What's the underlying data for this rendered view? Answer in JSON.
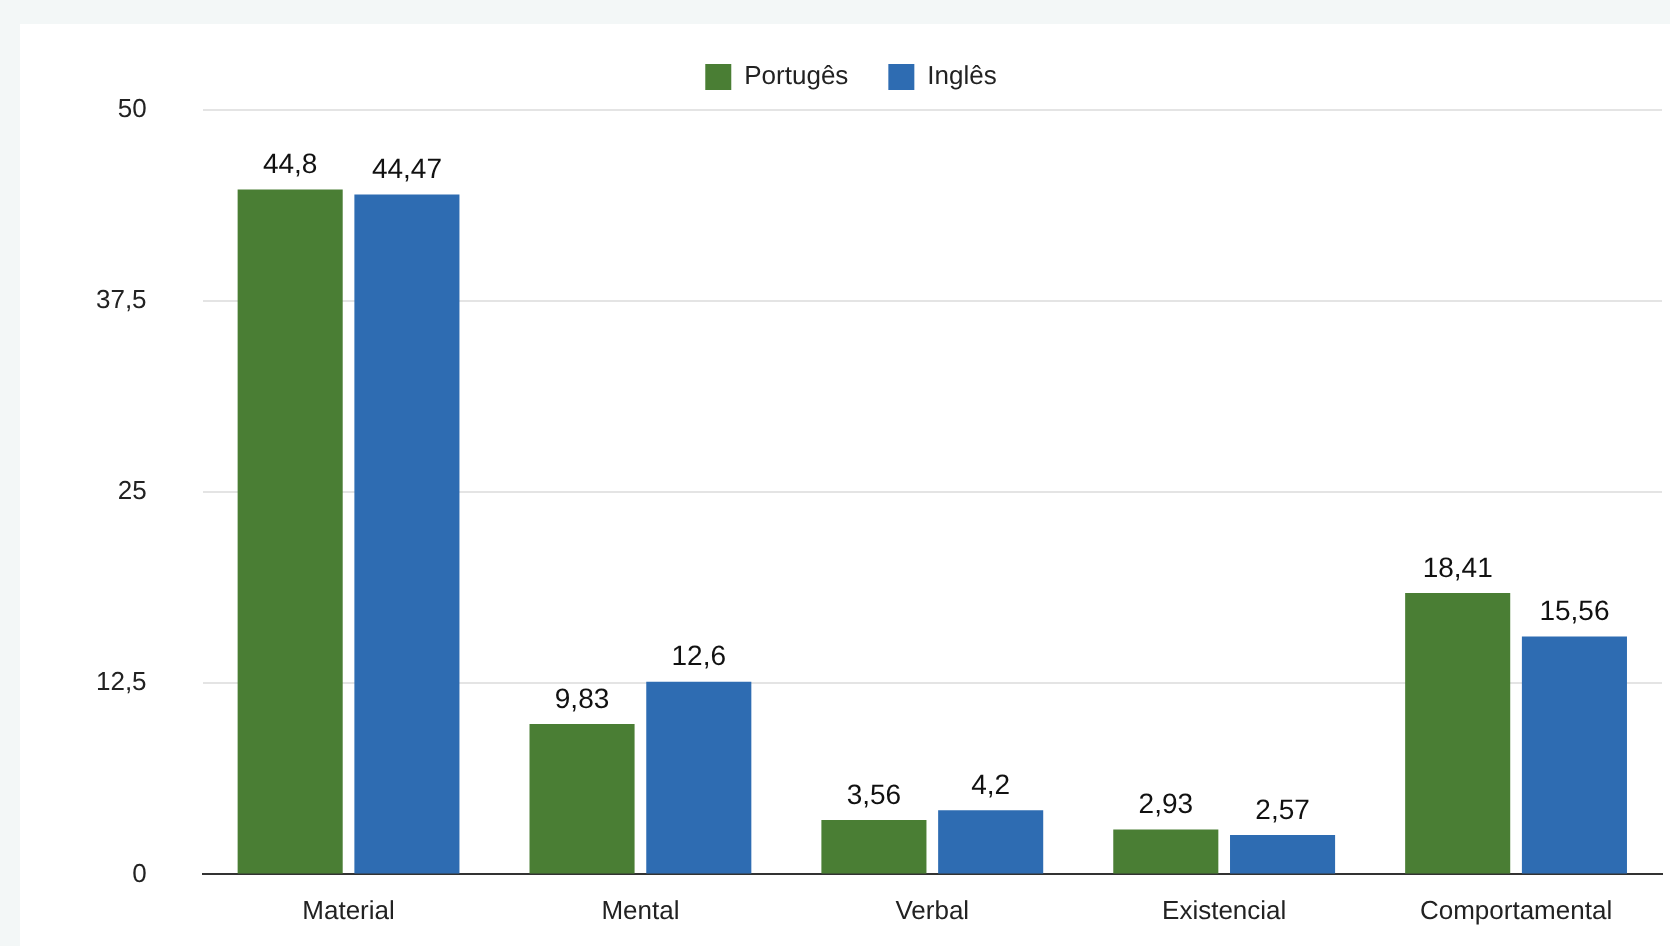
{
  "chart_data": {
    "type": "bar",
    "categories": [
      "Material",
      "Mental",
      "Verbal",
      "Existencial",
      "Comportamental"
    ],
    "series": [
      {
        "name": "Portugês",
        "color": "#4a7e34",
        "values": [
          44.8,
          9.83,
          3.56,
          2.93,
          18.41
        ],
        "value_labels": [
          "44,8",
          "9,83",
          "3,56",
          "2,93",
          "18,41"
        ]
      },
      {
        "name": "Inglês",
        "color": "#2e6cb2",
        "values": [
          44.47,
          12.6,
          4.2,
          2.57,
          15.56
        ],
        "value_labels": [
          "44,47",
          "12,6",
          "4,2",
          "2,57",
          "15,56"
        ]
      }
    ],
    "ylim": [
      0,
      50
    ],
    "yticks": [
      0,
      {
        "value": 12.5,
        "label": "12,5"
      },
      25,
      {
        "value": 37.5,
        "label": "37,5"
      },
      50
    ],
    "grid": "y",
    "legend": "top"
  }
}
